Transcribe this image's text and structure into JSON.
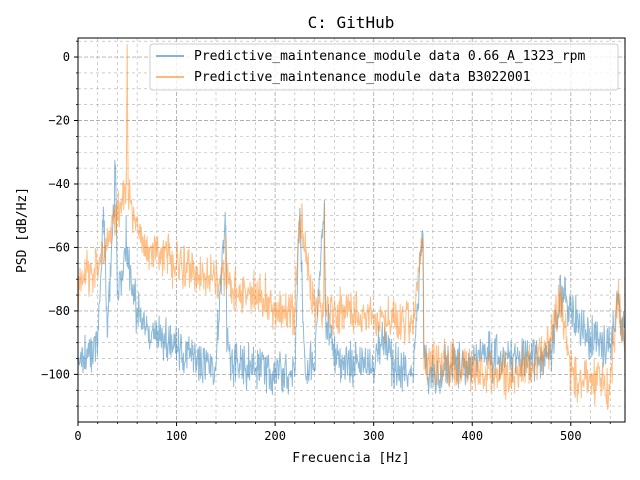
{
  "chart_data": {
    "type": "line",
    "title": "C: GitHub",
    "xlabel": "Frecuencia [Hz]",
    "ylabel": "PSD [dB/Hz]",
    "xlim": [
      0,
      555
    ],
    "ylim": [
      -115,
      6
    ],
    "xticks": [
      0,
      100,
      200,
      300,
      400,
      500
    ],
    "xtick_labels": [
      "0",
      "100",
      "200",
      "300",
      "400",
      "500"
    ],
    "yticks": [
      0,
      -20,
      -40,
      -60,
      -80,
      -100
    ],
    "ytick_labels": [
      "0",
      "−20",
      "−40",
      "−60",
      "−80",
      "−100"
    ],
    "grid": "major and minor, dashed",
    "legend_position": "upper-right",
    "series": [
      {
        "name": "Predictive_maintenance_module data 0.66_A_1323_rpm",
        "color": "#1f77b4",
        "opacity": 0.5,
        "x": [
          0,
          10,
          20,
          26,
          30,
          38,
          40,
          45,
          49,
          50,
          55,
          60,
          70,
          80,
          90,
          100,
          120,
          140,
          149,
          150,
          151,
          160,
          180,
          200,
          220,
          225,
          226,
          230,
          240,
          247,
          248,
          250,
          251,
          260,
          280,
          300,
          310,
          320,
          340,
          349,
          350,
          351,
          355,
          360,
          380,
          400,
          420,
          440,
          460,
          480,
          490,
          500,
          520,
          540,
          548,
          555
        ],
        "y": [
          -95,
          -93,
          -90,
          -48,
          -88,
          -34,
          -75,
          -70,
          -57,
          -60,
          -75,
          -80,
          -85,
          -88,
          -90,
          -92,
          -95,
          -97,
          -52,
          -53,
          -93,
          -97,
          -98,
          -100,
          -100,
          -49,
          -60,
          -95,
          -98,
          -56,
          -57,
          -45,
          -80,
          -95,
          -97,
          -98,
          -88,
          -98,
          -100,
          -55,
          -56,
          -95,
          -102,
          -100,
          -98,
          -95,
          -95,
          -95,
          -94,
          -93,
          -75,
          -80,
          -88,
          -92,
          -75,
          -90
        ]
      },
      {
        "name": "Predictive_maintenance_module data B3022001",
        "color": "#ff7f0e",
        "opacity": 0.5,
        "x": [
          0,
          10,
          20,
          30,
          40,
          45,
          49,
          50,
          51,
          55,
          60,
          70,
          80,
          90,
          100,
          120,
          140,
          149,
          150,
          151,
          160,
          180,
          200,
          220,
          225,
          240,
          249,
          250,
          251,
          260,
          280,
          300,
          320,
          340,
          349,
          350,
          351,
          360,
          380,
          400,
          420,
          440,
          460,
          480,
          490,
          500,
          520,
          540,
          548,
          555
        ],
        "y": [
          -72,
          -68,
          -65,
          -60,
          -50,
          -46,
          -40,
          0,
          -45,
          -48,
          -52,
          -60,
          -62,
          -63,
          -65,
          -68,
          -70,
          -72,
          -56,
          -73,
          -74,
          -75,
          -78,
          -80,
          -50,
          -79,
          -82,
          -46,
          -80,
          -80,
          -81,
          -82,
          -83,
          -84,
          -58,
          -57,
          -95,
          -97,
          -97,
          -98,
          -100,
          -100,
          -98,
          -90,
          -75,
          -100,
          -102,
          -103,
          -76,
          -95
        ]
      }
    ]
  }
}
